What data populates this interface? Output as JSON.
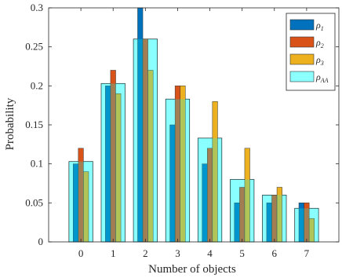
{
  "chart_data": {
    "type": "bar",
    "xlabel": "Number of objects",
    "ylabel": "Probability",
    "categories": [
      "0",
      "1",
      "2",
      "3",
      "4",
      "5",
      "6",
      "7"
    ],
    "ylim": [
      0,
      0.3
    ],
    "yticks": [
      "0",
      "0.05",
      "0.1",
      "0.15",
      "0.2",
      "0.25",
      "0.3"
    ],
    "legend_position": "top-right",
    "grid": false,
    "series": [
      {
        "name": "ρ1",
        "legend_main": "ρ",
        "legend_sub": "1",
        "color": "#0072BD",
        "values": [
          0.1,
          0.2,
          0.3,
          0.15,
          0.1,
          0.05,
          0.05,
          0.05
        ]
      },
      {
        "name": "ρ2",
        "legend_main": "ρ",
        "legend_sub": "2",
        "color": "#D95319",
        "values": [
          0.12,
          0.22,
          0.26,
          0.2,
          0.12,
          0.07,
          0.06,
          0.05
        ]
      },
      {
        "name": "ρ3",
        "legend_main": "ρ",
        "legend_sub": "3",
        "color": "#EDB120",
        "values": [
          0.09,
          0.19,
          0.22,
          0.2,
          0.18,
          0.12,
          0.07,
          0.03
        ]
      },
      {
        "name": "ρAA",
        "legend_main": "ρ",
        "legend_sub": "AA",
        "color": "#00FFFF",
        "values": [
          0.103,
          0.203,
          0.26,
          0.183,
          0.133,
          0.08,
          0.06,
          0.043
        ]
      }
    ]
  }
}
